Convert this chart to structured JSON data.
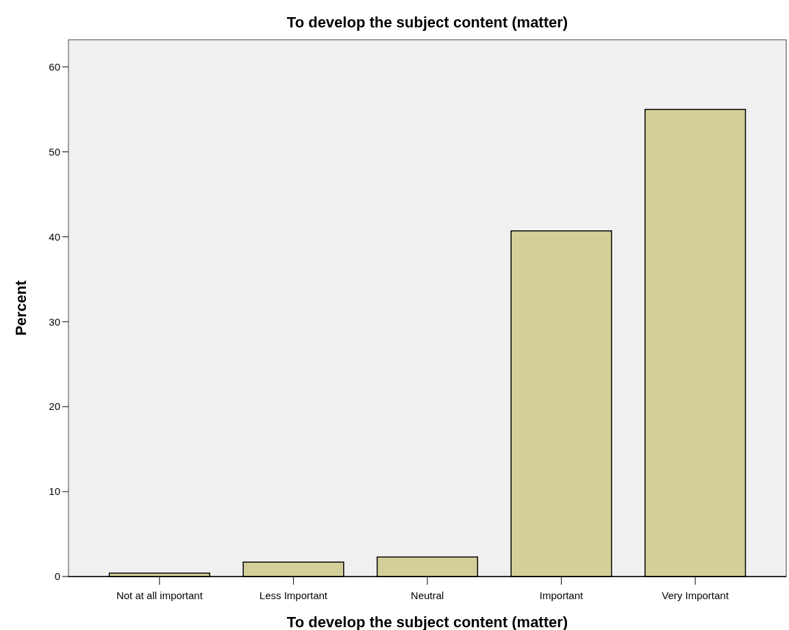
{
  "chart_data": {
    "type": "bar",
    "title": "To develop the subject content (matter)",
    "xlabel": "To develop the subject content (matter)",
    "ylabel": "Percent",
    "categories": [
      "Not at all important",
      "Less Important",
      "Neutral",
      "Important",
      "Very Important"
    ],
    "values": [
      0.4,
      1.7,
      2.3,
      40.7,
      55.0
    ],
    "color": "#d3cf98",
    "ylim": [
      0,
      63.2
    ],
    "yticks": [
      0,
      10,
      20,
      30,
      40,
      50,
      60
    ],
    "grid": false
  }
}
